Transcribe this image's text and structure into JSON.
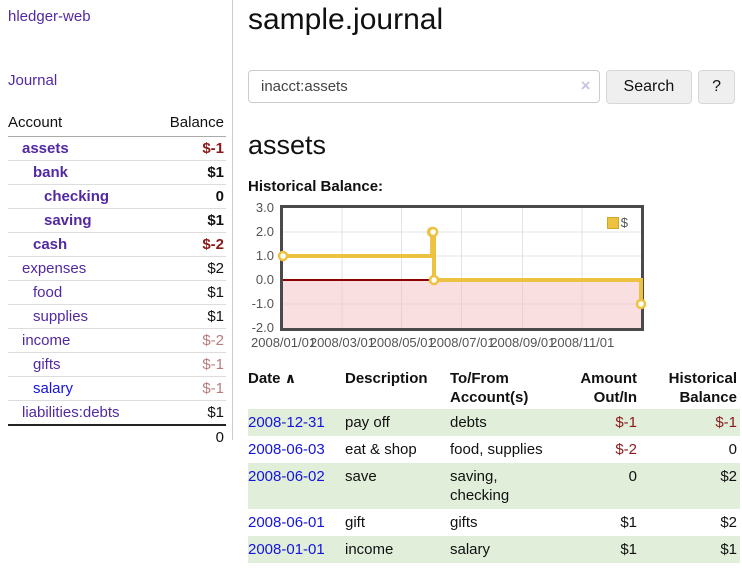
{
  "app": {
    "brand": "hledger-web",
    "nav_journal": "Journal"
  },
  "sidebar": {
    "header": {
      "account": "Account",
      "balance": "Balance"
    },
    "accounts": [
      {
        "name": "assets",
        "depth": 1,
        "balance": "$-1",
        "strong": true,
        "link": "purple"
      },
      {
        "name": "bank",
        "depth": 2,
        "balance": "$1",
        "strong": true,
        "link": "purple"
      },
      {
        "name": "checking",
        "depth": 3,
        "balance": "0",
        "strong": true,
        "link": "purple"
      },
      {
        "name": "saving",
        "depth": 3,
        "balance": "$1",
        "strong": true,
        "link": "purple"
      },
      {
        "name": "cash",
        "depth": 2,
        "balance": "$-2",
        "strong": true,
        "link": "purple"
      },
      {
        "name": "expenses",
        "depth": 1,
        "balance": "$2",
        "strong": false,
        "link": "purple"
      },
      {
        "name": "food",
        "depth": 2,
        "balance": "$1",
        "strong": false,
        "link": "purple"
      },
      {
        "name": "supplies",
        "depth": 2,
        "balance": "$1",
        "strong": false,
        "link": "purple"
      },
      {
        "name": "income",
        "depth": 1,
        "balance": "$-2",
        "strong": false,
        "link": "purple"
      },
      {
        "name": "gifts",
        "depth": 2,
        "balance": "$-1",
        "strong": false,
        "link": "purple"
      },
      {
        "name": "salary",
        "depth": 2,
        "balance": "$-1",
        "strong": false,
        "link": "blue"
      },
      {
        "name": "liabilities:debts",
        "depth": 1,
        "balance": "$1",
        "strong": false,
        "link": "purple"
      }
    ],
    "total": "0"
  },
  "header": {
    "title": "sample.journal"
  },
  "search": {
    "value": "inacct:assets",
    "clear_icon": "×",
    "button_label": "Search",
    "help_label": "?"
  },
  "account_page": {
    "title": "assets",
    "chart_label": "Historical Balance:"
  },
  "chart_data": {
    "type": "line",
    "step": true,
    "title": "Historical Balance",
    "series": [
      {
        "name": "$",
        "color": "#edc240",
        "points": [
          [
            "2008-01-01",
            1
          ],
          [
            "2008-06-01",
            2
          ],
          [
            "2008-06-02",
            2
          ],
          [
            "2008-06-03",
            0
          ],
          [
            "2008-12-31",
            -1
          ]
        ]
      }
    ],
    "x_range": [
      "2008-01-01",
      "2008-12-31"
    ],
    "x_ticks": [
      {
        "label": "2008/01/01",
        "date": "2008-01-01"
      },
      {
        "label": "2008/03/01",
        "date": "2008-03-01"
      },
      {
        "label": "2008/05/01",
        "date": "2008-05-01"
      },
      {
        "label": "2008/07/01",
        "date": "2008-07-01"
      },
      {
        "label": "2008/09/01",
        "date": "2008-09-01"
      },
      {
        "label": "2008/11/01",
        "date": "2008-11-01"
      }
    ],
    "y_ticks": [
      {
        "label": "3.0",
        "value": 3
      },
      {
        "label": "2.0",
        "value": 2
      },
      {
        "label": "1.0",
        "value": 1
      },
      {
        "label": "0.0",
        "value": 0
      },
      {
        "label": "-1.0",
        "value": -1
      },
      {
        "label": "-2.0",
        "value": -2
      }
    ],
    "ylim": [
      -2,
      3
    ],
    "grid": true,
    "zero_line_color": "#8b0000",
    "negative_region_color": "#f2b8b8",
    "legend": {
      "label": "$",
      "swatch_color": "#edc240",
      "position": "top-right"
    }
  },
  "register": {
    "columns": [
      {
        "label": "Date",
        "sort_indicator": "∧"
      },
      {
        "label": "Description"
      },
      {
        "label": "To/From Account(s)"
      },
      {
        "label": "Amount Out/In",
        "align": "right"
      },
      {
        "label": "Historical Balance",
        "align": "right"
      }
    ],
    "rows": [
      {
        "date": "2008-12-31",
        "description": "pay off",
        "accounts": "debts",
        "amount": "$-1",
        "balance": "$-1"
      },
      {
        "date": "2008-06-03",
        "description": "eat & shop",
        "accounts": "food, supplies",
        "amount": "$-2",
        "balance": "0"
      },
      {
        "date": "2008-06-02",
        "description": "save",
        "accounts": "saving, checking",
        "amount": "0",
        "balance": "$2"
      },
      {
        "date": "2008-06-01",
        "description": "gift",
        "accounts": "gifts",
        "amount": "$1",
        "balance": "$2"
      },
      {
        "date": "2008-01-01",
        "description": "income",
        "accounts": "salary",
        "amount": "$1",
        "balance": "$1"
      }
    ]
  }
}
